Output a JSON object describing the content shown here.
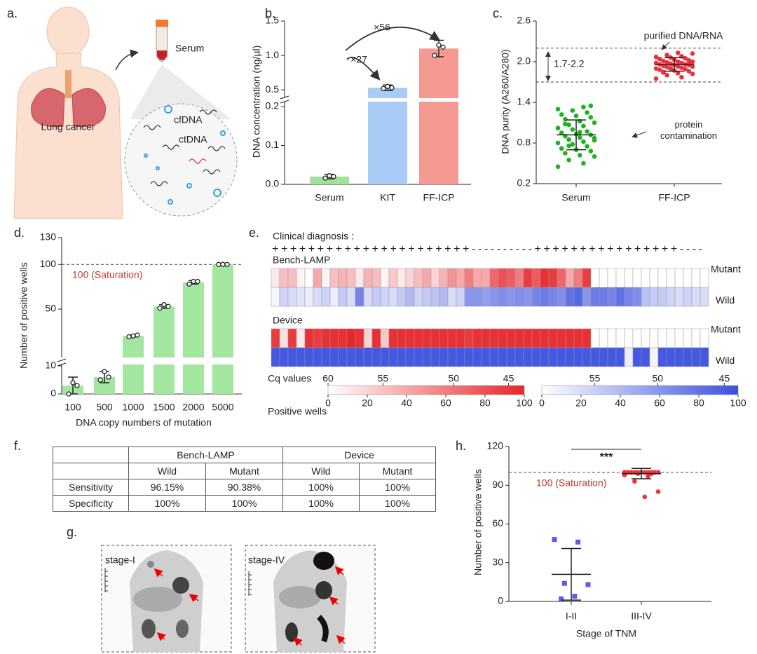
{
  "panel_labels": [
    "a.",
    "b.",
    "c.",
    "d.",
    "e.",
    "f.",
    "g.",
    "h."
  ],
  "panel_a": {
    "body_label": "Lung cancer",
    "tube_label": "Serum",
    "circle_labels": [
      "cfDNA",
      "ctDNA"
    ]
  },
  "panel_g": {
    "labels": [
      "stage-I",
      "stage-IV"
    ]
  },
  "table": {
    "groups": [
      "Bench-LAMP",
      "Device"
    ],
    "columns": [
      "Wild",
      "Mutant",
      "Wild",
      "Mutant"
    ],
    "rows": [
      {
        "label": "Sensitivity",
        "cells": [
          "96.15%",
          "90.38%",
          "100%",
          "100%"
        ]
      },
      {
        "label": "Specificity",
        "cells": [
          "100%",
          "100%",
          "100%",
          "100%"
        ]
      }
    ]
  },
  "chart_data": [
    {
      "type": "bar",
      "y_label": "DNA concentration (ng/µl)",
      "categories": [
        "Serum",
        "KIT",
        "FF-ICP"
      ],
      "values": [
        0.02,
        0.53,
        1.1
      ],
      "errors": [
        0.006,
        0.04,
        0.12
      ],
      "points": [
        [
          0.016,
          0.022,
          0.02
        ],
        [
          0.52,
          0.55,
          0.53
        ],
        [
          1.0,
          1.15,
          1.12
        ]
      ],
      "colors": [
        "#9fe39a",
        "#a9ccf6",
        "#f59a93"
      ],
      "axis_segments": [
        {
          "ylim": [
            0,
            0.2
          ],
          "yticks": [
            {
              "value": 0,
              "label": "0.0"
            },
            0.1,
            0.2
          ]
        },
        {
          "ylim": [
            0.4,
            1.5
          ],
          "yticks": [
            0.5,
            {
              "value": 1,
              "label": "1.0"
            },
            1.5
          ]
        }
      ],
      "annotations": [
        "×27",
        "×56"
      ]
    },
    {
      "type": "strip",
      "y_label": "DNA purity (A260/A280)",
      "categories": [
        "Serum",
        "FF-ICP"
      ],
      "series": [
        {
          "color": "#1db31d",
          "marker": "circle",
          "mean": 0.92,
          "sd": 0.22,
          "values": [
            0.45,
            0.5,
            0.55,
            0.6,
            0.62,
            0.65,
            0.68,
            0.7,
            0.72,
            0.75,
            0.78,
            0.8,
            0.82,
            0.85,
            0.87,
            0.88,
            0.9,
            0.92,
            0.93,
            0.95,
            0.97,
            1.0,
            1.02,
            1.05,
            1.07,
            1.1,
            1.12,
            1.15,
            1.18,
            1.2,
            1.22,
            1.25,
            1.28,
            1.3,
            1.33,
            0.76,
            0.84,
            0.96,
            1.08,
            1.35
          ]
        },
        {
          "color": "#e8323c",
          "marker": "circle",
          "mean": 1.96,
          "sd": 0.1,
          "values": [
            1.75,
            1.77,
            1.8,
            1.82,
            1.83,
            1.85,
            1.86,
            1.87,
            1.88,
            1.89,
            1.9,
            1.9,
            1.91,
            1.92,
            1.93,
            1.93,
            1.94,
            1.95,
            1.95,
            1.96,
            1.96,
            1.97,
            1.98,
            1.98,
            1.99,
            2.0,
            2.0,
            2.01,
            2.02,
            2.03,
            2.04,
            2.05,
            2.06,
            2.07,
            2.08,
            2.1,
            2.12,
            2.13,
            1.84,
            1.97
          ]
        }
      ],
      "ylim": [
        0.2,
        2.6
      ],
      "yticks": [
        0.2,
        0.8,
        1.4,
        {
          "value": 2,
          "label": "2.0"
        },
        2.6
      ],
      "reference_lines": [
        1.7,
        2.2
      ],
      "annotations": [
        "purified DNA/RNA",
        "1.7-2.2",
        "protein contamination"
      ]
    },
    {
      "type": "bar",
      "y_label": "Number of positive wells",
      "x_label": "DNA copy numbers of mutation",
      "categories": [
        "100",
        "500",
        "1000",
        "1500",
        "2000",
        "5000"
      ],
      "values": [
        3,
        6,
        20,
        53,
        80,
        100
      ],
      "errors": [
        3,
        2,
        1,
        2,
        2,
        0.5
      ],
      "points": [
        [
          0,
          4,
          3
        ],
        [
          5,
          8,
          6
        ],
        [
          19,
          20,
          21
        ],
        [
          51,
          55,
          53
        ],
        [
          78,
          81,
          81
        ],
        [
          100,
          100,
          100
        ]
      ],
      "color": "#a3e6a0",
      "axis_segments": [
        {
          "ylim": [
            0,
            10
          ],
          "yticks": [
            0
          ]
        },
        {
          "ylim": [
            10,
            130
          ],
          "yticks": [
            10,
            50,
            100,
            130
          ]
        }
      ],
      "reference_lines": [
        0,
        {
          "value": 100,
          "label": "100 (Saturation)"
        }
      ]
    },
    {
      "type": "heatmap",
      "diagnosis_label": "Clinical diagnosis :",
      "diagnosis": "++++++++++++++++++++++----------++++++++++++++++----",
      "groups": [
        {
          "name": "Bench-LAMP",
          "rows": [
            {
              "name": "Mutant",
              "color": "#e8262a",
              "values": [
                10,
                30,
                30,
                5,
                0,
                40,
                5,
                30,
                35,
                30,
                10,
                35,
                30,
                5,
                25,
                10,
                20,
                30,
                40,
                20,
                35,
                50,
                40,
                60,
                40,
                40,
                70,
                80,
                75,
                60,
                90,
                75,
                95,
                90,
                70,
                40,
                60,
                90,
                0,
                0,
                0,
                0,
                0,
                0,
                0,
                0,
                0,
                0,
                0,
                0,
                0,
                0
              ]
            },
            {
              "name": "Wild",
              "color": "#3b4fe0",
              "values": [
                5,
                25,
                20,
                15,
                10,
                20,
                25,
                10,
                30,
                20,
                70,
                20,
                30,
                25,
                20,
                30,
                40,
                25,
                30,
                35,
                40,
                20,
                25,
                60,
                60,
                55,
                60,
                65,
                60,
                65,
                60,
                70,
                75,
                70,
                65,
                80,
                85,
                60,
                75,
                75,
                70,
                80,
                70,
                65,
                35,
                30,
                30,
                25,
                20,
                25,
                20,
                20
              ]
            }
          ]
        },
        {
          "name": "Device",
          "rows": [
            {
              "name": "Mutant",
              "color": "#e8262a",
              "values": [
                90,
                15,
                90,
                10,
                95,
                90,
                95,
                95,
                95,
                100,
                95,
                20,
                95,
                25,
                95,
                95,
                95,
                95,
                95,
                95,
                95,
                95,
                95,
                90,
                95,
                95,
                95,
                95,
                95,
                95,
                95,
                95,
                95,
                95,
                95,
                95,
                95,
                95,
                0,
                0,
                0,
                0,
                0,
                0,
                0,
                0,
                0,
                0,
                0,
                0,
                0,
                0
              ]
            },
            {
              "name": "Wild",
              "color": "#3b4fe0",
              "values": [
                95,
                95,
                95,
                95,
                95,
                95,
                95,
                95,
                95,
                95,
                95,
                95,
                95,
                95,
                95,
                95,
                95,
                95,
                95,
                95,
                95,
                95,
                95,
                95,
                95,
                95,
                95,
                95,
                95,
                95,
                95,
                95,
                95,
                95,
                95,
                95,
                95,
                95,
                95,
                95,
                95,
                95,
                10,
                95,
                95,
                5,
                95,
                95,
                95,
                95,
                95,
                95
              ]
            }
          ]
        }
      ],
      "colorbar": {
        "range": [
          0,
          100
        ],
        "ticks": [
          0,
          20,
          40,
          60,
          80,
          100
        ],
        "top_title": "Cq values",
        "bottom_title": "Positive wells",
        "cq_ticks": [
          [
            {
              "value": 0,
              "label": "60"
            },
            {
              "value": 28,
              "label": "55"
            },
            {
              "value": 64,
              "label": "50"
            },
            {
              "value": 92,
              "label": "45"
            }
          ],
          [
            {
              "value": 27,
              "label": "55"
            },
            {
              "value": 59,
              "label": "50"
            },
            {
              "value": 93,
              "label": "45"
            }
          ]
        ]
      }
    },
    {
      "type": "strip",
      "y_label": "Number of positive wells",
      "x_label": "Stage of TNM",
      "categories": [
        "I-II",
        "III-IV"
      ],
      "series": [
        {
          "color": "#5a5de8",
          "marker": "square",
          "mean": 21,
          "sd": 20,
          "values": [
            48,
            46,
            14,
            13,
            4,
            2
          ]
        },
        {
          "color": "#f0323c",
          "marker": "circle",
          "mean": 99,
          "sd": 4,
          "values": [
            100,
            100,
            100,
            100,
            100,
            100,
            100,
            100,
            100,
            100,
            100,
            100,
            100,
            100,
            100,
            100,
            100,
            100,
            100,
            100,
            99,
            99,
            98,
            97,
            93,
            85,
            81
          ]
        }
      ],
      "ylim": [
        0,
        120
      ],
      "yticks": [
        0,
        30,
        60,
        90,
        120
      ],
      "reference_lines": [
        {
          "value": 100,
          "label": "100 (Saturation)"
        }
      ],
      "significance": "***"
    }
  ]
}
